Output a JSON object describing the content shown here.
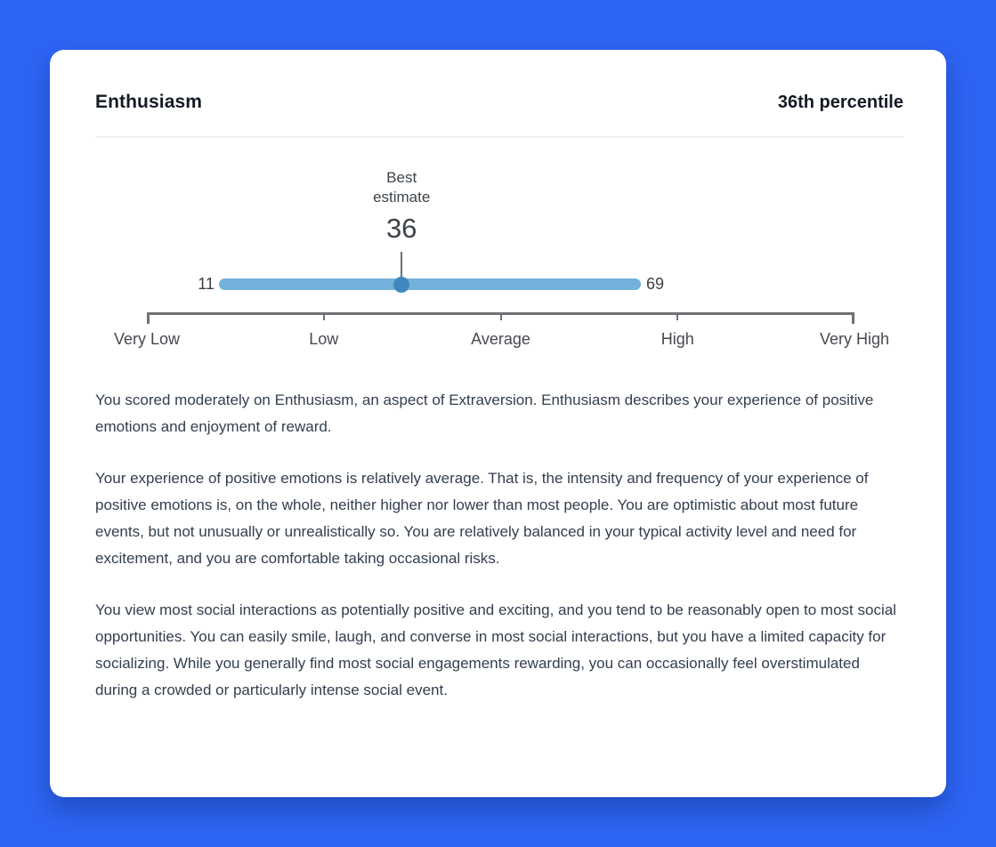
{
  "colors": {
    "background": "#2d65f3",
    "card": "#ffffff",
    "range_bar": "#73b2da",
    "estimate_dot": "#4288be",
    "axis": "#6e7176",
    "heading_text": "#141a24",
    "body_text": "#333e4e"
  },
  "header": {
    "title": "Enthusiasm",
    "percentile": "36th percentile"
  },
  "chart_data": {
    "type": "range",
    "title": "Best estimate",
    "best_estimate": 36,
    "range_low": 11,
    "range_high": 69,
    "scale_min": 0,
    "scale_max": 100,
    "axis_labels": [
      "Very Low",
      "Low",
      "Average",
      "High",
      "Very High"
    ],
    "legend_position": "none",
    "grid": false
  },
  "paragraphs": [
    "You scored moderately on Enthusiasm, an aspect of Extraversion. Enthusiasm describes your experience of positive emotions and enjoyment of reward.",
    "Your experience of positive emotions is relatively average. That is, the intensity and frequency of your experience of positive emotions is, on the whole, neither higher nor lower than most people. You are optimistic about most future events, but not unusually or unrealistically so. You are relatively balanced in your typical activity level and need for excitement, and you are comfortable taking occasional risks.",
    "You view most social interactions as potentially positive and exciting, and you tend to be reasonably open to most social opportunities. You can easily smile, laugh, and converse in most social interactions, but you have a limited capacity for socializing. While you generally find most social engagements rewarding, you can occasionally feel overstimulated during a crowded or particularly intense social event."
  ]
}
